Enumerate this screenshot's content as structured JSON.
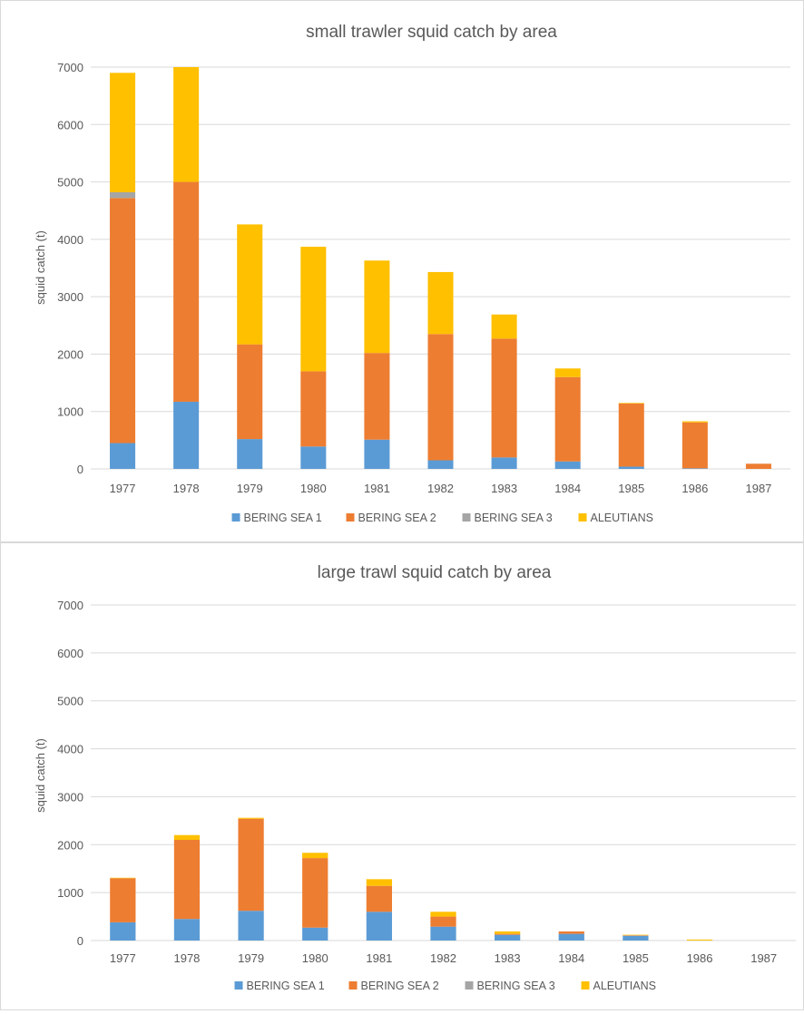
{
  "colors": {
    "BERING SEA 1": "#5b9bd5",
    "BERING SEA 2": "#ed7d31",
    "BERING SEA 3": "#a5a5a5",
    "ALEUTIANS": "#ffc000",
    "grid": "#d9d9d9",
    "text": "#595959"
  },
  "chart_data": [
    {
      "type": "bar",
      "stacked": true,
      "title": "small trawler squid catch by area",
      "xlabel": "",
      "ylabel": "squid catch (t)",
      "ylim": [
        0,
        7000
      ],
      "yticks": [
        "0",
        "1000",
        "2000",
        "3000",
        "4000",
        "5000",
        "6000",
        "7000"
      ],
      "grid": "horizontal",
      "legend": "bottom",
      "categories": [
        "1977",
        "1978",
        "1979",
        "1980",
        "1981",
        "1982",
        "1983",
        "1984",
        "1985",
        "1986",
        "1987"
      ],
      "series": [
        {
          "name": "BERING SEA 1",
          "values": [
            450,
            1170,
            520,
            390,
            510,
            150,
            200,
            130,
            40,
            10,
            0
          ]
        },
        {
          "name": "BERING SEA 2",
          "values": [
            4270,
            3830,
            1650,
            1310,
            1510,
            2200,
            2070,
            1470,
            1100,
            800,
            90
          ]
        },
        {
          "name": "BERING SEA 3",
          "values": [
            100,
            0,
            0,
            0,
            0,
            0,
            0,
            0,
            0,
            0,
            0
          ]
        },
        {
          "name": "ALEUTIANS",
          "values": [
            2080,
            2000,
            2090,
            2170,
            1610,
            1080,
            420,
            150,
            10,
            20,
            0
          ]
        }
      ]
    },
    {
      "type": "bar",
      "stacked": true,
      "title": "large trawl squid catch by area",
      "xlabel": "",
      "ylabel": "squid catch (t)",
      "ylim": [
        0,
        7000
      ],
      "yticks": [
        "0",
        "1000",
        "2000",
        "3000",
        "4000",
        "5000",
        "6000",
        "7000"
      ],
      "grid": "horizontal",
      "legend": "bottom",
      "categories": [
        "1977",
        "1978",
        "1979",
        "1980",
        "1981",
        "1982",
        "1983",
        "1984",
        "1985",
        "1986",
        "1987"
      ],
      "series": [
        {
          "name": "BERING SEA 1",
          "values": [
            380,
            450,
            620,
            270,
            600,
            290,
            120,
            140,
            100,
            0,
            0
          ]
        },
        {
          "name": "BERING SEA 2",
          "values": [
            920,
            1650,
            1920,
            1450,
            540,
            210,
            20,
            50,
            10,
            0,
            0
          ]
        },
        {
          "name": "BERING SEA 3",
          "values": [
            0,
            0,
            0,
            0,
            0,
            0,
            0,
            0,
            0,
            0,
            0
          ]
        },
        {
          "name": "ALEUTIANS",
          "values": [
            10,
            100,
            20,
            110,
            140,
            100,
            50,
            0,
            10,
            20,
            0
          ]
        }
      ]
    }
  ]
}
